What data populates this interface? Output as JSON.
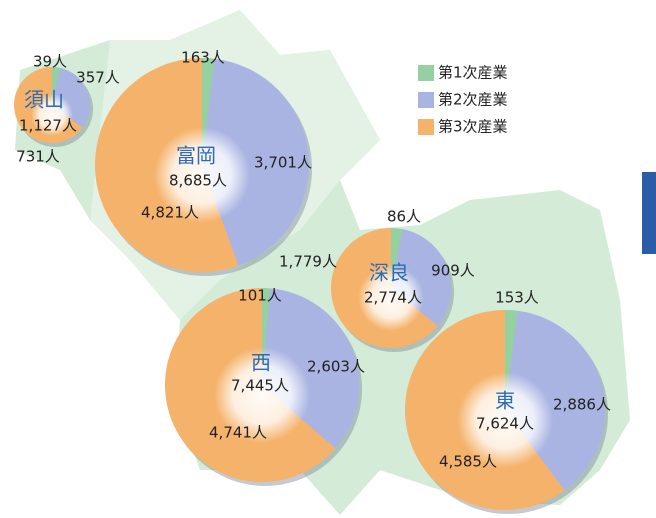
{
  "legend": {
    "labels": [
      "第1次産業",
      "第2次産業",
      "第3次産業"
    ],
    "colors": [
      "#94d0a0",
      "#a9b4e2",
      "#f5b26a"
    ]
  },
  "chart_data": [
    {
      "type": "pie",
      "title": "須山",
      "total": {
        "value": 1127,
        "label": "1,127人"
      },
      "values": [
        39,
        357,
        731
      ],
      "value_labels": [
        "39人",
        "357人",
        "731人"
      ]
    },
    {
      "type": "pie",
      "title": "富岡",
      "total": {
        "value": 8685,
        "label": "8,685人"
      },
      "values": [
        163,
        3701,
        4821
      ],
      "value_labels": [
        "163人",
        "3,701人",
        "4,821人"
      ]
    },
    {
      "type": "pie",
      "title": "深良",
      "total": {
        "value": 2774,
        "label": "2,774人"
      },
      "values": [
        86,
        909,
        1779
      ],
      "value_labels": [
        "86人",
        "909人",
        "1,779人"
      ]
    },
    {
      "type": "pie",
      "title": "西",
      "total": {
        "value": 7445,
        "label": "7,445人"
      },
      "values": [
        101,
        2603,
        4741
      ],
      "value_labels": [
        "101人",
        "2,603人",
        "4,741人"
      ]
    },
    {
      "type": "pie",
      "title": "東",
      "total": {
        "value": 7624,
        "label": "7,624人"
      },
      "values": [
        153,
        2886,
        4585
      ],
      "value_labels": [
        "153人",
        "2,886人",
        "4,585人"
      ]
    }
  ]
}
